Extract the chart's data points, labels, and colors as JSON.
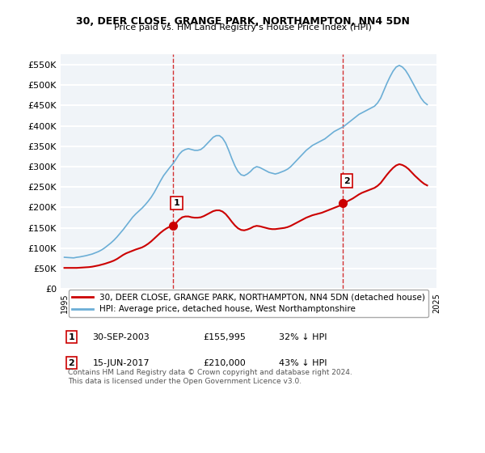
{
  "title": "30, DEER CLOSE, GRANGE PARK, NORTHAMPTON, NN4 5DN",
  "subtitle": "Price paid vs. HM Land Registry's House Price Index (HPI)",
  "hpi_label": "HPI: Average price, detached house, West Northamptonshire",
  "price_label": "30, DEER CLOSE, GRANGE PARK, NORTHAMPTON, NN4 5DN (detached house)",
  "legend_note1": "1     30-SEP-2003       £155,995       32% ↓ HPI",
  "legend_note2": "2     15-JUN-2017       £210,000       43% ↓ HPI",
  "footnote": "Contains HM Land Registry data © Crown copyright and database right 2024.\nThis data is licensed under the Open Government Licence v3.0.",
  "hpi_color": "#6baed6",
  "price_color": "#cc0000",
  "marker_color": "#cc0000",
  "vline_color": "#cc0000",
  "bg_color": "#f0f4f8",
  "grid_color": "#ffffff",
  "ylim": [
    0,
    575000
  ],
  "yticks": [
    0,
    50000,
    100000,
    150000,
    200000,
    250000,
    300000,
    350000,
    400000,
    450000,
    500000,
    550000
  ],
  "ylabel_fmt": [
    "£0",
    "£50K",
    "£100K",
    "£150K",
    "£200K",
    "£250K",
    "£300K",
    "£350K",
    "£400K",
    "£450K",
    "£500K",
    "£550K"
  ],
  "sale1_year": 2003.75,
  "sale1_price": 155995,
  "sale2_year": 2017.45,
  "sale2_price": 210000,
  "hpi_years": [
    1995.0,
    1995.25,
    1995.5,
    1995.75,
    1996.0,
    1996.25,
    1996.5,
    1996.75,
    1997.0,
    1997.25,
    1997.5,
    1997.75,
    1998.0,
    1998.25,
    1998.5,
    1998.75,
    1999.0,
    1999.25,
    1999.5,
    1999.75,
    2000.0,
    2000.25,
    2000.5,
    2000.75,
    2001.0,
    2001.25,
    2001.5,
    2001.75,
    2002.0,
    2002.25,
    2002.5,
    2002.75,
    2003.0,
    2003.25,
    2003.5,
    2003.75,
    2004.0,
    2004.25,
    2004.5,
    2004.75,
    2005.0,
    2005.25,
    2005.5,
    2005.75,
    2006.0,
    2006.25,
    2006.5,
    2006.75,
    2007.0,
    2007.25,
    2007.5,
    2007.75,
    2008.0,
    2008.25,
    2008.5,
    2008.75,
    2009.0,
    2009.25,
    2009.5,
    2009.75,
    2010.0,
    2010.25,
    2010.5,
    2010.75,
    2011.0,
    2011.25,
    2011.5,
    2011.75,
    2012.0,
    2012.25,
    2012.5,
    2012.75,
    2013.0,
    2013.25,
    2013.5,
    2013.75,
    2014.0,
    2014.25,
    2014.5,
    2014.75,
    2015.0,
    2015.25,
    2015.5,
    2015.75,
    2016.0,
    2016.25,
    2016.5,
    2016.75,
    2017.0,
    2017.25,
    2017.5,
    2017.75,
    2018.0,
    2018.25,
    2018.5,
    2018.75,
    2019.0,
    2019.25,
    2019.5,
    2019.75,
    2020.0,
    2020.25,
    2020.5,
    2020.75,
    2021.0,
    2021.25,
    2021.5,
    2021.75,
    2022.0,
    2022.25,
    2022.5,
    2022.75,
    2023.0,
    2023.25,
    2023.5,
    2023.75,
    2024.0,
    2024.25
  ],
  "hpi_values": [
    78000,
    77500,
    77000,
    76500,
    78000,
    79000,
    80500,
    82000,
    84000,
    86000,
    89000,
    92000,
    96000,
    101000,
    107000,
    113000,
    120000,
    128000,
    137000,
    146000,
    156000,
    166000,
    176000,
    184000,
    191000,
    198000,
    206000,
    215000,
    225000,
    237000,
    251000,
    265000,
    278000,
    288000,
    298000,
    307000,
    318000,
    330000,
    338000,
    342000,
    344000,
    342000,
    340000,
    340000,
    342000,
    348000,
    356000,
    364000,
    372000,
    376000,
    376000,
    370000,
    358000,
    340000,
    320000,
    302000,
    288000,
    280000,
    278000,
    282000,
    288000,
    296000,
    300000,
    298000,
    294000,
    290000,
    286000,
    284000,
    282000,
    284000,
    287000,
    290000,
    294000,
    300000,
    308000,
    316000,
    324000,
    332000,
    340000,
    346000,
    352000,
    356000,
    360000,
    364000,
    368000,
    374000,
    380000,
    386000,
    390000,
    394000,
    398000,
    404000,
    410000,
    416000,
    422000,
    428000,
    432000,
    436000,
    440000,
    444000,
    448000,
    456000,
    468000,
    486000,
    504000,
    520000,
    534000,
    544000,
    548000,
    544000,
    536000,
    524000,
    510000,
    496000,
    482000,
    468000,
    458000,
    452000
  ],
  "price_years": [
    1995.0,
    1995.25,
    1995.5,
    1995.75,
    1996.0,
    1996.25,
    1996.5,
    1996.75,
    1997.0,
    1997.25,
    1997.5,
    1997.75,
    1998.0,
    1998.25,
    1998.5,
    1998.75,
    1999.0,
    1999.25,
    1999.5,
    1999.75,
    2000.0,
    2000.25,
    2000.5,
    2000.75,
    2001.0,
    2001.25,
    2001.5,
    2001.75,
    2002.0,
    2002.25,
    2002.5,
    2002.75,
    2003.0,
    2003.25,
    2003.5,
    2003.75,
    2004.0,
    2004.25,
    2004.5,
    2004.75,
    2005.0,
    2005.25,
    2005.5,
    2005.75,
    2006.0,
    2006.25,
    2006.5,
    2006.75,
    2007.0,
    2007.25,
    2007.5,
    2007.75,
    2008.0,
    2008.25,
    2008.5,
    2008.75,
    2009.0,
    2009.25,
    2009.5,
    2009.75,
    2010.0,
    2010.25,
    2010.5,
    2010.75,
    2011.0,
    2011.25,
    2011.5,
    2011.75,
    2012.0,
    2012.25,
    2012.5,
    2012.75,
    2013.0,
    2013.25,
    2013.5,
    2013.75,
    2014.0,
    2014.25,
    2014.5,
    2014.75,
    2015.0,
    2015.25,
    2015.5,
    2015.75,
    2016.0,
    2016.25,
    2016.5,
    2016.75,
    2017.0,
    2017.25,
    2017.5,
    2017.75,
    2018.0,
    2018.25,
    2018.5,
    2018.75,
    2019.0,
    2019.25,
    2019.5,
    2019.75,
    2020.0,
    2020.25,
    2020.5,
    2020.75,
    2021.0,
    2021.25,
    2021.5,
    2021.75,
    2022.0,
    2022.25,
    2022.5,
    2022.75,
    2023.0,
    2023.25,
    2023.5,
    2023.75,
    2024.0,
    2024.25
  ],
  "price_values": [
    52000,
    52000,
    52000,
    52000,
    52000,
    52500,
    53000,
    53500,
    54000,
    55000,
    56500,
    58000,
    60000,
    62000,
    64500,
    67000,
    70000,
    74000,
    79000,
    84000,
    88000,
    91000,
    94000,
    97000,
    99500,
    102000,
    106000,
    111000,
    117000,
    124000,
    131000,
    138000,
    144000,
    149000,
    153000,
    155995,
    162000,
    170000,
    176000,
    178000,
    178000,
    176000,
    175000,
    175000,
    176000,
    179000,
    183000,
    187000,
    191000,
    193000,
    193000,
    190000,
    184000,
    175000,
    165000,
    156000,
    149000,
    145000,
    144000,
    146000,
    149000,
    153000,
    155000,
    154000,
    152000,
    150000,
    148000,
    147000,
    147000,
    148000,
    149000,
    150000,
    152000,
    155000,
    159000,
    163000,
    167000,
    171000,
    175000,
    178000,
    181000,
    183000,
    185000,
    187000,
    190000,
    193000,
    196000,
    199000,
    202000,
    205000,
    210000,
    214000,
    218000,
    222000,
    227000,
    232000,
    236000,
    239000,
    242000,
    245000,
    248000,
    253000,
    260000,
    270000,
    280000,
    289000,
    297000,
    303000,
    306000,
    304000,
    300000,
    294000,
    286000,
    278000,
    271000,
    264000,
    258000,
    254000
  ]
}
